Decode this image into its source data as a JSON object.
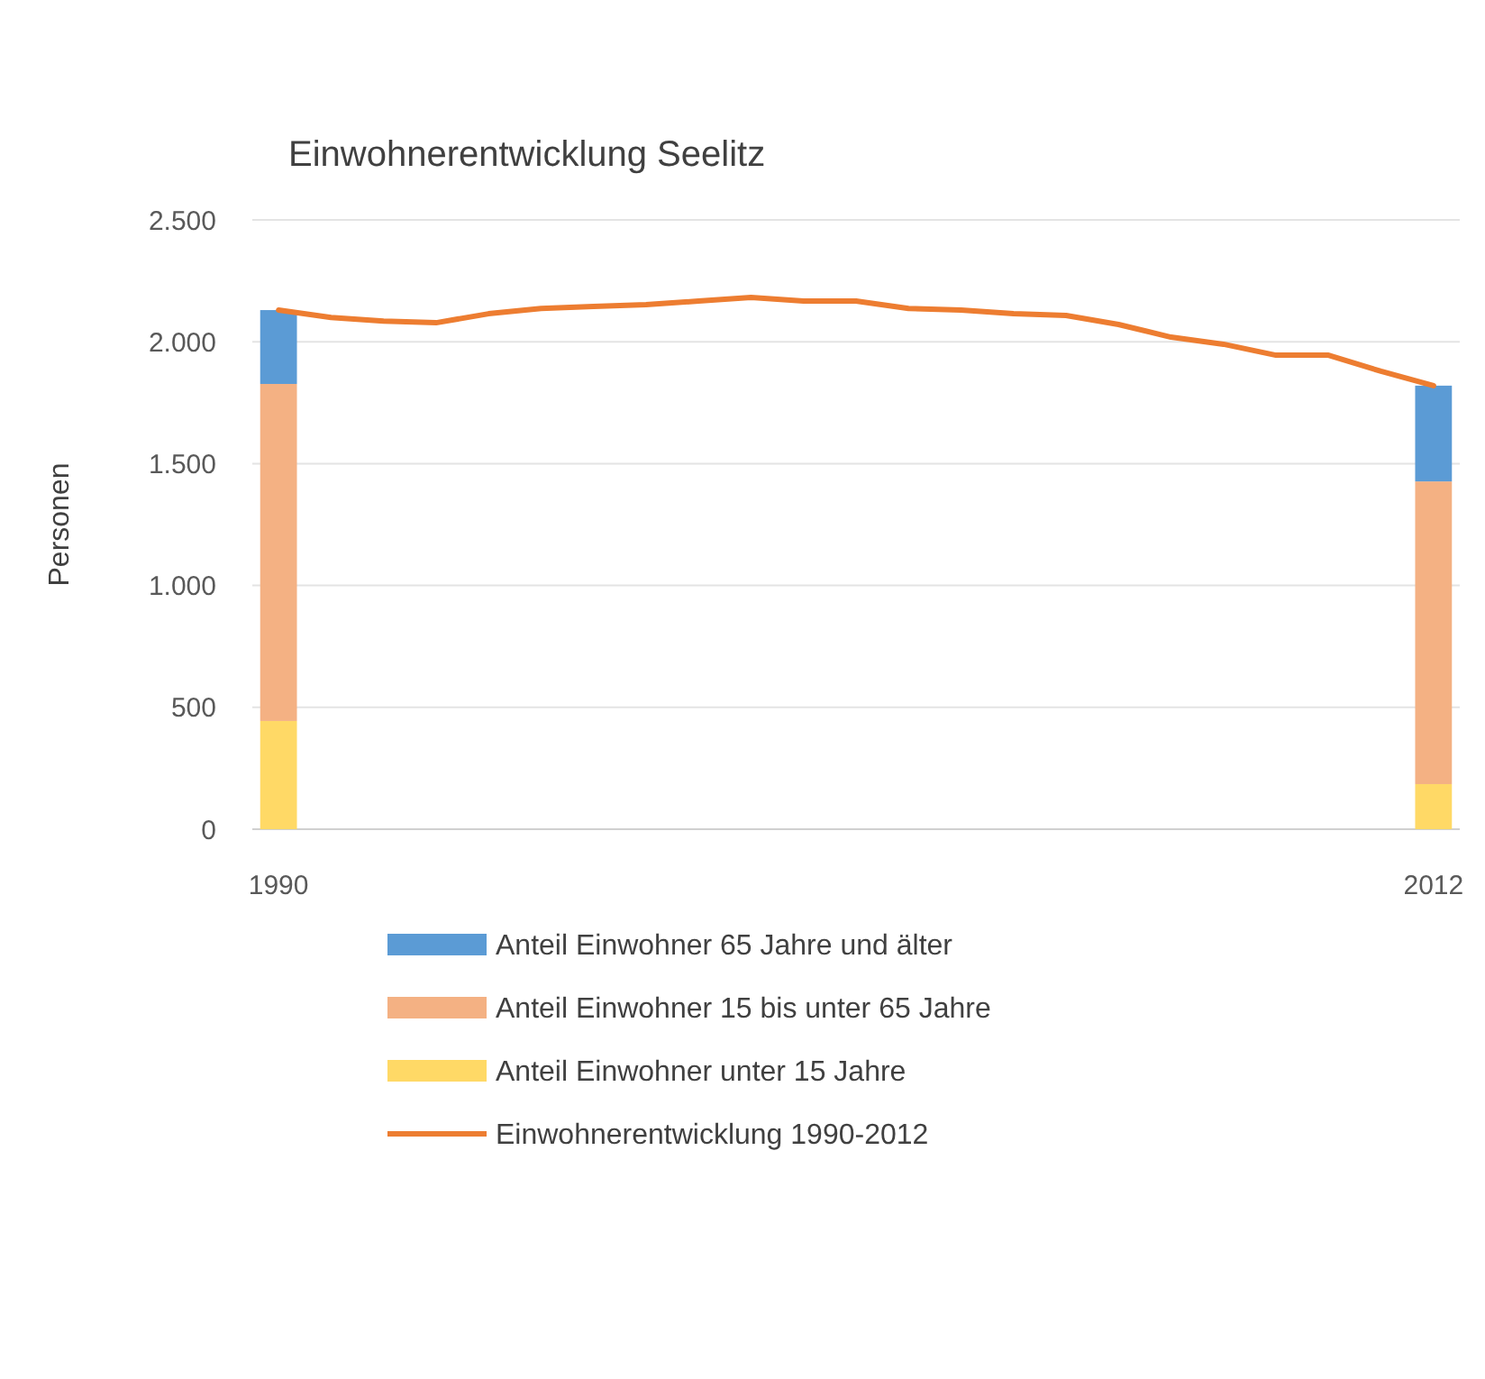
{
  "chart_data": {
    "type": "bar",
    "stacked": true,
    "title": "Einwohnerentwicklung Seelitz",
    "ylabel": "Personen",
    "categories": [
      "1990",
      null,
      null,
      null,
      null,
      null,
      null,
      null,
      null,
      null,
      null,
      null,
      null,
      null,
      null,
      null,
      null,
      null,
      null,
      null,
      null,
      null,
      "2012"
    ],
    "series": [
      {
        "name": "Anteil Einwohner unter 15 Jahre",
        "color": "#ffd966",
        "values": [
          444,
          null,
          null,
          null,
          null,
          null,
          null,
          null,
          null,
          null,
          null,
          null,
          null,
          null,
          null,
          null,
          null,
          null,
          null,
          null,
          null,
          null,
          185
        ]
      },
      {
        "name": "Anteil Einwohner 15 bis unter 65 Jahre",
        "color": "#f4b183",
        "values": [
          1383,
          null,
          null,
          null,
          null,
          null,
          null,
          null,
          null,
          null,
          null,
          null,
          null,
          null,
          null,
          null,
          null,
          null,
          null,
          null,
          null,
          null,
          1242
        ]
      },
      {
        "name": "Anteil Einwohner 65 Jahre und älter",
        "color": "#5b9bd5",
        "values": [
          303,
          null,
          null,
          null,
          null,
          null,
          null,
          null,
          null,
          null,
          null,
          null,
          null,
          null,
          null,
          null,
          null,
          null,
          null,
          null,
          null,
          null,
          393
        ]
      },
      {
        "name": "Einwohnerentwicklung 1990-2012",
        "type": "line",
        "color": "#ed7d31",
        "values": [
          2130,
          2100,
          2085,
          2078,
          2115,
          2137,
          2145,
          2152,
          2167,
          2182,
          2167,
          2167,
          2137,
          2130,
          2115,
          2108,
          2071,
          2019,
          1990,
          1945,
          1945,
          1879,
          1820
        ]
      }
    ],
    "ylim": [
      0,
      2500
    ],
    "yticks": [
      {
        "value": 0,
        "label": "0"
      },
      {
        "value": 500,
        "label": "500"
      },
      {
        "value": 1000,
        "label": "1.000"
      },
      {
        "value": 1500,
        "label": "1.500"
      },
      {
        "value": 2000,
        "label": "2.000"
      },
      {
        "value": 2500,
        "label": "2.500"
      }
    ],
    "grid": "y",
    "legend": "bottom",
    "marker": "none",
    "line_style": "solid"
  }
}
